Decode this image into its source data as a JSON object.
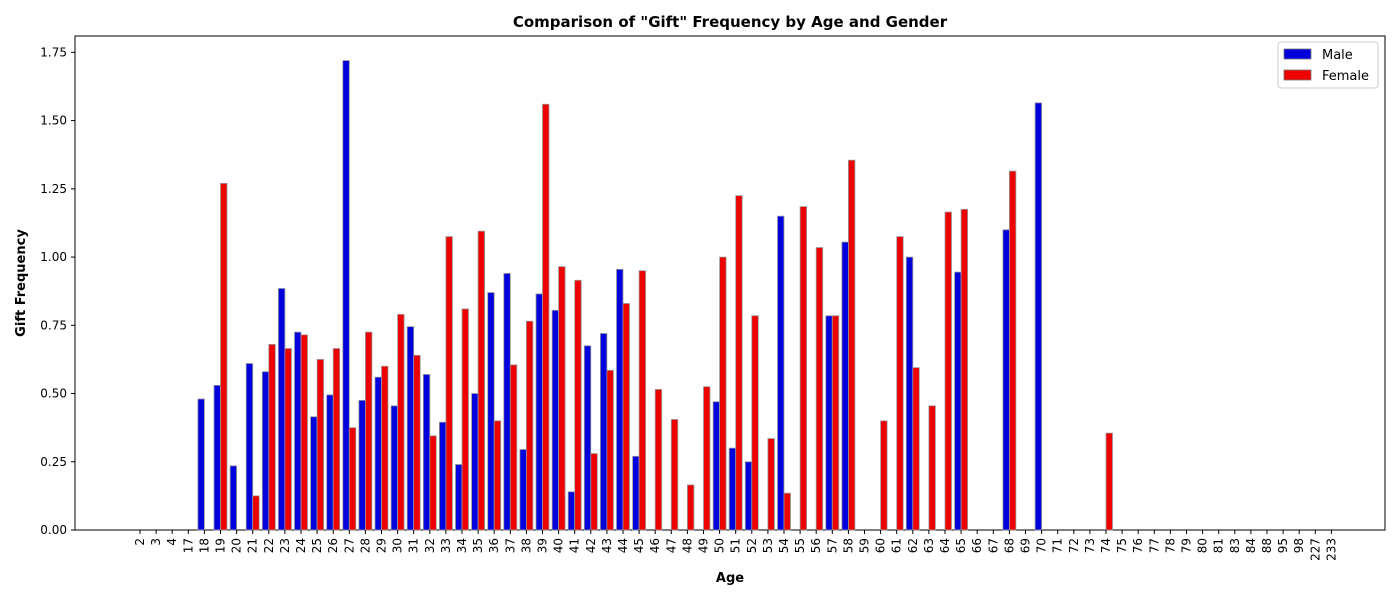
{
  "chart_data": {
    "type": "bar",
    "title": "Comparison of \"Gift\" Frequency by Age and Gender",
    "xlabel": "Age",
    "ylabel": "Gift Frequency",
    "ylim": [
      0,
      1.81
    ],
    "yticks": [
      "0.00",
      "0.25",
      "0.50",
      "0.75",
      "1.00",
      "1.25",
      "1.50",
      "1.75"
    ],
    "legend_position": "top-right",
    "grid": false,
    "categories": [
      "2",
      "3",
      "4",
      "17",
      "18",
      "19",
      "20",
      "21",
      "22",
      "23",
      "24",
      "25",
      "26",
      "27",
      "28",
      "29",
      "30",
      "31",
      "32",
      "33",
      "34",
      "35",
      "36",
      "37",
      "38",
      "39",
      "40",
      "41",
      "42",
      "43",
      "44",
      "45",
      "46",
      "47",
      "48",
      "49",
      "50",
      "51",
      "52",
      "53",
      "54",
      "55",
      "56",
      "57",
      "58",
      "59",
      "60",
      "61",
      "62",
      "63",
      "64",
      "65",
      "66",
      "67",
      "68",
      "69",
      "70",
      "71",
      "72",
      "73",
      "74",
      "75",
      "76",
      "77",
      "78",
      "79",
      "80",
      "81",
      "83",
      "84",
      "88",
      "95",
      "98",
      "227",
      "233"
    ],
    "series": [
      {
        "name": "Male",
        "color": "#0000dd",
        "values": [
          0,
          0,
          0,
          0,
          0.48,
          0.53,
          0.235,
          0.61,
          0.58,
          0.885,
          0.725,
          0.415,
          0.495,
          1.72,
          0.475,
          0.56,
          0.455,
          0.745,
          0.57,
          0.395,
          0.24,
          0.5,
          0.87,
          0.94,
          0.295,
          0.865,
          0.805,
          0.14,
          0.675,
          0.72,
          0.955,
          0.27,
          0,
          0,
          0,
          0,
          0.47,
          0.3,
          0.25,
          0,
          1.15,
          0,
          0,
          0.785,
          1.055,
          0,
          0,
          0,
          1.0,
          0,
          0,
          0.945,
          0,
          0,
          1.1,
          0,
          1.565,
          0,
          0,
          0,
          0,
          0,
          0,
          0,
          0,
          0,
          0,
          0,
          0,
          0,
          0,
          0,
          0,
          0,
          0
        ]
      },
      {
        "name": "Female",
        "color": "#ee0000",
        "values": [
          0,
          0,
          0,
          0,
          0,
          1.27,
          0,
          0.125,
          0.68,
          0.665,
          0.715,
          0.625,
          0.665,
          0.375,
          0.725,
          0.6,
          0.79,
          0.64,
          0.345,
          1.075,
          0.81,
          1.095,
          0.4,
          0.605,
          0.765,
          1.56,
          0.965,
          0.915,
          0.28,
          0.585,
          0.83,
          0.95,
          0.515,
          0.405,
          0.165,
          0.525,
          1.0,
          1.225,
          0.785,
          0.335,
          0.135,
          1.185,
          1.035,
          0.785,
          1.355,
          0,
          0.4,
          1.075,
          0.595,
          0.455,
          1.165,
          1.175,
          0,
          0,
          1.315,
          0,
          0,
          0,
          0,
          0,
          0.355,
          0,
          0,
          0,
          0,
          0,
          0,
          0,
          0,
          0,
          0,
          0,
          0,
          0,
          0
        ]
      }
    ]
  }
}
